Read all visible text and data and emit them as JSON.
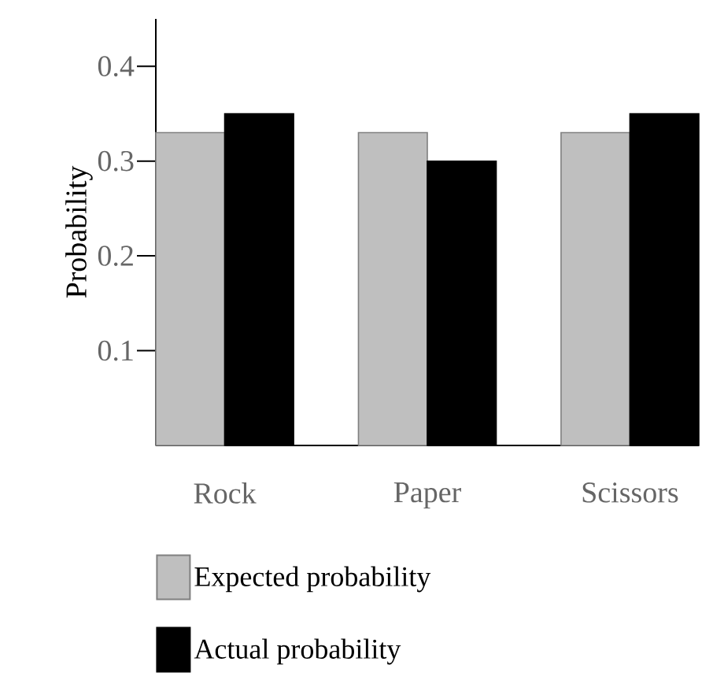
{
  "chart_data": {
    "type": "bar",
    "ylabel": "Probability",
    "categories": [
      "Rock",
      "Paper",
      "Scissors"
    ],
    "series": [
      {
        "name": "Expected probability",
        "color": "#bfbfbf",
        "values": [
          0.33,
          0.33,
          0.33
        ]
      },
      {
        "name": "Actual probability",
        "color": "#000000",
        "values": [
          0.35,
          0.3,
          0.35
        ]
      }
    ],
    "ylim": [
      0,
      0.45
    ],
    "yticks": [
      0.1,
      0.2,
      0.3,
      0.4
    ],
    "legend": "bottom",
    "grid": false
  }
}
